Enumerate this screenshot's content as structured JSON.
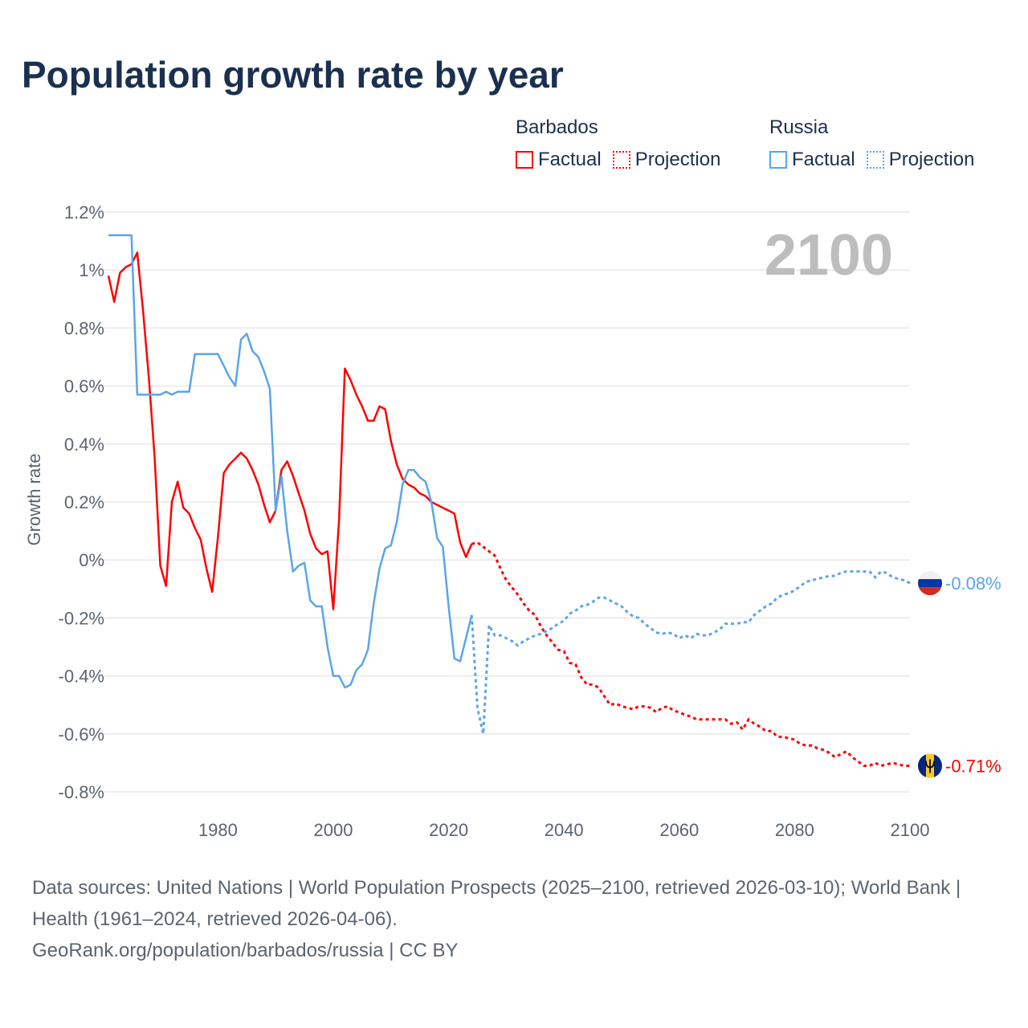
{
  "title": "Population growth rate by year",
  "legend": [
    {
      "country": "Barbados",
      "factual": "Factual",
      "projection": "Projection",
      "color": "#ff0000"
    },
    {
      "country": "Russia",
      "factual": "Factual",
      "projection": "Projection",
      "color": "#5aa5ea"
    }
  ],
  "footer": {
    "sources": "Data sources: United Nations | World Population Prospects (2025–2100, retrieved 2026-03-10); World Bank | Health (1961–2024, retrieved 2026-04-06).",
    "credit": "GeoRank.org/population/barbados/russia | CC BY"
  },
  "chart_data": {
    "type": "line",
    "title": "Population growth rate by year",
    "ylabel": "Growth rate",
    "xlabel": "",
    "year_label": "2100",
    "xlim": [
      1961,
      2100
    ],
    "ylim": [
      -0.8,
      1.2
    ],
    "x_ticks": [
      "1980",
      "2000",
      "2020",
      "2040",
      "2060",
      "2080",
      "2100"
    ],
    "y_ticks": [
      "1.2%",
      "1%",
      "0.8%",
      "0.6%",
      "0.4%",
      "0.2%",
      "0%",
      "-0.2%",
      "-0.4%",
      "-0.6%",
      "-0.8%"
    ],
    "grid": true,
    "legend_position": "top-right",
    "series": [
      {
        "name": "Barbados",
        "color": "#ff0000",
        "end_label": "-0.71%",
        "factual_start": 1961,
        "factual": [
          0.98,
          0.89,
          0.99,
          1.01,
          1.02,
          1.06,
          0.86,
          0.63,
          0.36,
          -0.02,
          -0.09,
          0.2,
          0.27,
          0.18,
          0.16,
          0.11,
          0.07,
          -0.03,
          -0.11,
          0.08,
          0.3,
          0.33,
          0.35,
          0.37,
          0.35,
          0.31,
          0.26,
          0.19,
          0.13,
          0.17,
          0.31,
          0.34,
          0.29,
          0.23,
          0.17,
          0.09,
          0.04,
          0.02,
          0.03,
          -0.17,
          0.14,
          0.66,
          0.62,
          0.57,
          0.53,
          0.48,
          0.48,
          0.53,
          0.52,
          0.41,
          0.33,
          0.28,
          0.26,
          0.25,
          0.23,
          0.22,
          0.2,
          0.19,
          0.18,
          0.17,
          0.16,
          0.06,
          0.01,
          0.055
        ],
        "projection_start": 2024,
        "projection": [
          0.055,
          0.06,
          0.045,
          0.03,
          0.015,
          -0.03,
          -0.07,
          -0.095,
          -0.12,
          -0.15,
          -0.175,
          -0.19,
          -0.23,
          -0.26,
          -0.285,
          -0.31,
          -0.315,
          -0.355,
          -0.36,
          -0.405,
          -0.43,
          -0.43,
          -0.44,
          -0.47,
          -0.5,
          -0.495,
          -0.505,
          -0.51,
          -0.515,
          -0.505,
          -0.505,
          -0.51,
          -0.525,
          -0.51,
          -0.505,
          -0.52,
          -0.525,
          -0.535,
          -0.54,
          -0.55,
          -0.55,
          -0.55,
          -0.55,
          -0.55,
          -0.55,
          -0.565,
          -0.56,
          -0.585,
          -0.55,
          -0.565,
          -0.575,
          -0.59,
          -0.59,
          -0.61,
          -0.61,
          -0.615,
          -0.62,
          -0.635,
          -0.64,
          -0.64,
          -0.65,
          -0.655,
          -0.665,
          -0.68,
          -0.67,
          -0.66,
          -0.68,
          -0.695,
          -0.71,
          -0.71,
          -0.7,
          -0.71,
          -0.705,
          -0.7,
          -0.705,
          -0.71,
          -0.71
        ]
      },
      {
        "name": "Russia",
        "color": "#5aa5ea",
        "end_label": "-0.08%",
        "factual_start": 1961,
        "factual": [
          1.12,
          1.12,
          1.12,
          1.12,
          1.12,
          0.57,
          0.57,
          0.57,
          0.57,
          0.57,
          0.58,
          0.57,
          0.58,
          0.58,
          0.58,
          0.71,
          0.71,
          0.71,
          0.71,
          0.71,
          0.67,
          0.63,
          0.6,
          0.76,
          0.78,
          0.72,
          0.7,
          0.65,
          0.59,
          0.17,
          0.29,
          0.1,
          -0.04,
          -0.02,
          -0.01,
          -0.14,
          -0.16,
          -0.16,
          -0.3,
          -0.4,
          -0.4,
          -0.44,
          -0.43,
          -0.38,
          -0.36,
          -0.31,
          -0.15,
          -0.03,
          0.04,
          0.05,
          0.13,
          0.26,
          0.31,
          0.31,
          0.285,
          0.27,
          0.2,
          0.075,
          0.045,
          -0.16,
          -0.34,
          -0.35,
          -0.27,
          -0.19
        ],
        "projection_start": 2024,
        "projection": [
          -0.19,
          -0.51,
          -0.6,
          -0.225,
          -0.26,
          -0.26,
          -0.27,
          -0.28,
          -0.295,
          -0.28,
          -0.27,
          -0.26,
          -0.255,
          -0.245,
          -0.235,
          -0.22,
          -0.21,
          -0.185,
          -0.175,
          -0.16,
          -0.155,
          -0.145,
          -0.13,
          -0.13,
          -0.14,
          -0.15,
          -0.16,
          -0.18,
          -0.195,
          -0.2,
          -0.22,
          -0.235,
          -0.25,
          -0.255,
          -0.25,
          -0.255,
          -0.27,
          -0.26,
          -0.27,
          -0.255,
          -0.26,
          -0.26,
          -0.25,
          -0.24,
          -0.22,
          -0.22,
          -0.22,
          -0.215,
          -0.215,
          -0.19,
          -0.175,
          -0.16,
          -0.15,
          -0.13,
          -0.12,
          -0.115,
          -0.105,
          -0.09,
          -0.075,
          -0.07,
          -0.065,
          -0.06,
          -0.055,
          -0.055,
          -0.045,
          -0.04,
          -0.04,
          -0.04,
          -0.04,
          -0.04,
          -0.06,
          -0.04,
          -0.045,
          -0.06,
          -0.065,
          -0.07,
          -0.08
        ]
      }
    ]
  }
}
